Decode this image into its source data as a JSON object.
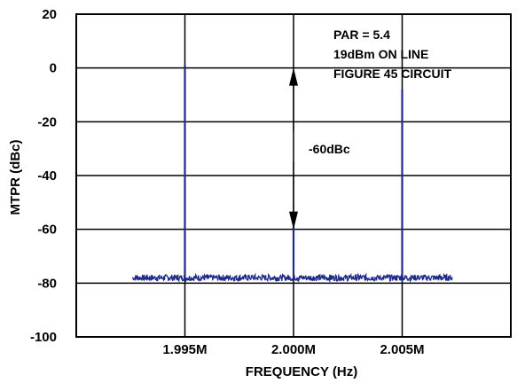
{
  "chart_data": {
    "type": "line",
    "xlabel": "FREQUENCY (Hz)",
    "ylabel": "MTPR (dBc)",
    "xlim": [
      1.99,
      2.01
    ],
    "ylim": [
      -100,
      20
    ],
    "x_ticks": [
      {
        "value": 1.995,
        "label": "1.995M"
      },
      {
        "value": 2.0,
        "label": "2.000M"
      },
      {
        "value": 2.005,
        "label": "2.005M"
      }
    ],
    "y_ticks": [
      {
        "value": 20,
        "label": "20"
      },
      {
        "value": 0,
        "label": "0"
      },
      {
        "value": -20,
        "label": "-20"
      },
      {
        "value": -40,
        "label": "-40"
      },
      {
        "value": -60,
        "label": "-60"
      },
      {
        "value": -80,
        "label": "-80"
      },
      {
        "value": -100,
        "label": "-100"
      }
    ],
    "grid": true,
    "series": [
      {
        "color": "#1f2a8a",
        "noise_floor": -78,
        "x_range": [
          1.9926,
          2.0073
        ],
        "peaks": [
          {
            "x": 1.995,
            "y": 1
          },
          {
            "x": 2.0,
            "y": -59
          },
          {
            "x": 2.005,
            "y": -8
          }
        ]
      }
    ],
    "annotations": {
      "box_lines": [
        "PAR = 5.4",
        "19dBm ON LINE",
        "FIGURE 45 CIRCUIT"
      ],
      "dimension_label": "-60dBc",
      "dimension_arrow": {
        "x": 2.0,
        "from": 0,
        "to": -60
      }
    }
  }
}
